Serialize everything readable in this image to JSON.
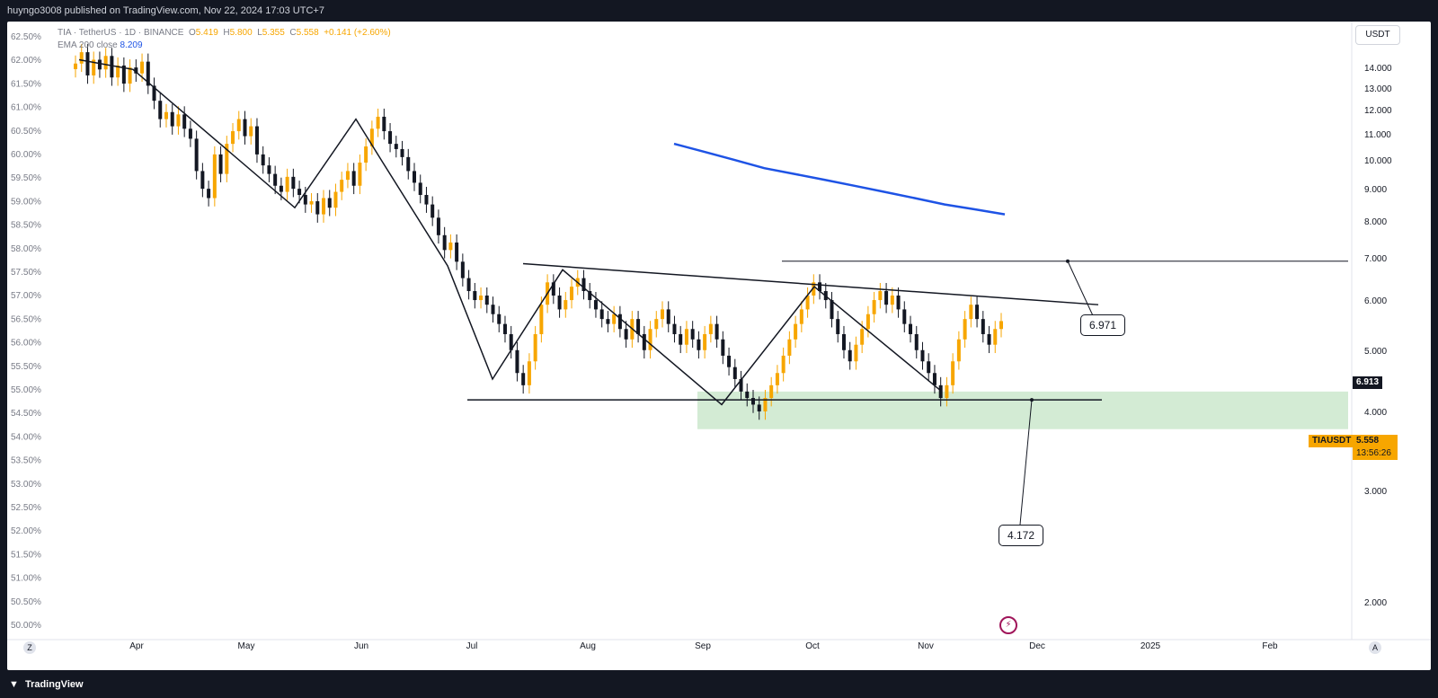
{
  "header": {
    "publish_line": "huyngo3008 published on TradingView.com, Nov 22, 2024 17:03 UTC+7"
  },
  "legend": {
    "symbol": "TIA",
    "name": "TetherUS",
    "interval": "1D",
    "exchange": "BINANCE",
    "open_label": "O",
    "open": "5.419",
    "high_label": "H",
    "high": "5.800",
    "low_label": "L",
    "low": "5.355",
    "close_label": "C",
    "close": "5.558",
    "change": "+0.141 (+2.60%)",
    "ema_label": "EMA 200 close",
    "ema_value": "8.209"
  },
  "toolbar": {
    "currency": "USDT"
  },
  "axis_buttons": {
    "left": "Z",
    "right": "A"
  },
  "price_tags": {
    "resistance": "6.913",
    "symbol": "TIAUSDT",
    "last_price": "5.558",
    "countdown": "13:56:26"
  },
  "callouts": {
    "top": "6.971",
    "bottom": "4.172"
  },
  "footer": {
    "logo_text": "TradingView"
  },
  "colors": {
    "up": "#f7a600",
    "down": "#131722",
    "ema": "#1e53e5",
    "zone": "#c8e6c9",
    "background": "#ffffff",
    "frame": "#131722"
  },
  "chart_data": {
    "type": "candlestick",
    "symbol": "TIAUSDT",
    "right_axis": {
      "ticks": [
        "14.000",
        "13.000",
        "12.000",
        "11.000",
        "10.000",
        "9.000",
        "8.000",
        "7.000",
        "6.000",
        "5.000",
        "4.000",
        "3.000",
        "2.000"
      ],
      "scale": "log"
    },
    "left_axis": {
      "ticks": [
        "62.50%",
        "62.00%",
        "61.50%",
        "61.00%",
        "60.50%",
        "60.00%",
        "59.50%",
        "59.00%",
        "58.50%",
        "58.00%",
        "57.50%",
        "57.00%",
        "56.50%",
        "56.00%",
        "55.50%",
        "55.00%",
        "54.50%",
        "54.00%",
        "53.50%",
        "53.00%",
        "52.50%",
        "52.00%",
        "51.50%",
        "51.00%",
        "50.50%",
        "50.00%"
      ]
    },
    "x_axis": {
      "ticks": [
        "Apr",
        "May",
        "Jun",
        "Jul",
        "Aug",
        "Sep",
        "Oct",
        "Nov",
        "Dec",
        "2025",
        "Feb"
      ]
    },
    "candles_close": [
      14.2,
      14.8,
      13.6,
      14.4,
      13.9,
      14.6,
      13.5,
      14.1,
      13.2,
      14.0,
      13.7,
      14.3,
      13.1,
      12.4,
      11.6,
      11.9,
      11.3,
      11.8,
      11.2,
      10.8,
      9.6,
      9.0,
      8.7,
      10.2,
      9.5,
      10.6,
      11.1,
      11.6,
      10.9,
      11.3,
      10.2,
      9.8,
      9.5,
      9.1,
      8.9,
      9.4,
      9.0,
      8.8,
      8.5,
      8.6,
      8.2,
      8.7,
      8.4,
      8.9,
      9.3,
      9.6,
      9.1,
      9.9,
      10.5,
      11.2,
      11.7,
      11.1,
      10.6,
      10.4,
      10.1,
      9.6,
      9.2,
      8.8,
      8.5,
      8.1,
      7.6,
      7.2,
      7.4,
      6.9,
      6.5,
      6.2,
      6.0,
      6.1,
      5.9,
      5.7,
      5.5,
      5.3,
      5.0,
      4.6,
      4.4,
      4.8,
      5.3,
      5.9,
      6.4,
      6.1,
      5.8,
      6.0,
      6.3,
      6.5,
      6.2,
      6.0,
      5.8,
      5.6,
      5.5,
      5.7,
      5.4,
      5.2,
      5.6,
      5.3,
      5.0,
      5.4,
      5.6,
      5.8,
      5.5,
      5.3,
      5.1,
      5.4,
      5.2,
      5.0,
      5.3,
      5.5,
      5.2,
      4.9,
      4.7,
      4.5,
      4.3,
      4.2,
      4.1,
      4.0,
      4.2,
      4.4,
      4.6,
      4.9,
      5.2,
      5.5,
      5.8,
      6.1,
      6.4,
      6.2,
      6.0,
      5.6,
      5.3,
      5.0,
      4.8,
      5.1,
      5.4,
      5.7,
      6.0,
      6.2,
      5.9,
      6.1,
      5.8,
      5.5,
      5.3,
      5.0,
      4.8,
      4.6,
      4.4,
      4.2,
      4.4,
      4.8,
      5.2,
      5.6,
      5.9,
      5.6,
      5.3,
      5.1,
      5.4,
      5.558
    ],
    "ema200": [
      10.6,
      10.3,
      10.0,
      9.7,
      9.5,
      9.3,
      9.1,
      8.9,
      8.7,
      8.5,
      8.35,
      8.2
    ],
    "levels": {
      "resistance": 6.913,
      "support": 4.172,
      "zone_low": 3.75,
      "zone_high": 4.3
    },
    "descending_trendline": {
      "start": 6.85,
      "end": 5.9
    },
    "support_line": 4.172
  }
}
